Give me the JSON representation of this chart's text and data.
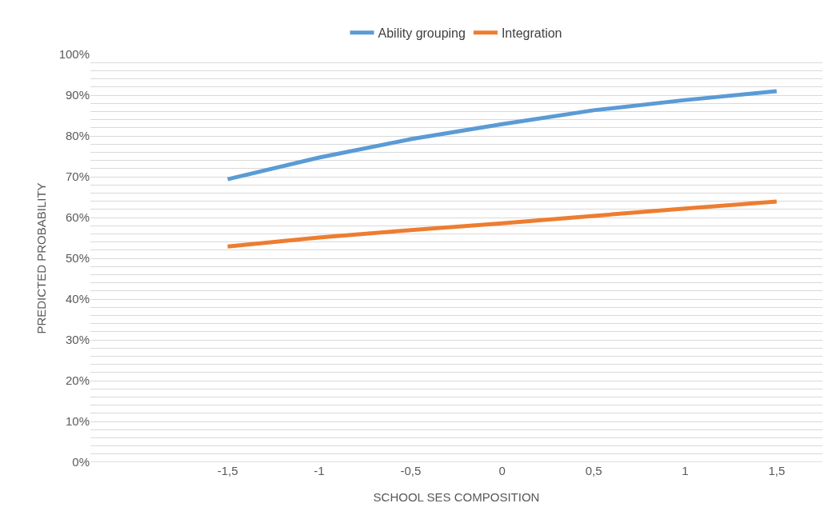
{
  "chart_data": {
    "type": "line",
    "xlabel": "SCHOOL SES COMPOSITION",
    "ylabel": "PREDICTED PROBABILITY",
    "categories": [
      null,
      "-1,5",
      "-1",
      "-0,5",
      "0",
      "0,5",
      "1",
      "1,5"
    ],
    "series": [
      {
        "name": "Ability grouping",
        "color": "#5b9bd5",
        "values": [
          null,
          69.4,
          74.7,
          79.2,
          82.9,
          86.3,
          88.8,
          91.0
        ]
      },
      {
        "name": "Integration",
        "color": "#ed7d31",
        "values": [
          null,
          52.9,
          55.1,
          56.9,
          58.6,
          60.4,
          62.2,
          63.9
        ]
      }
    ],
    "ylim": [
      0,
      100
    ],
    "yticks": [
      {
        "value": 0,
        "label": "0%"
      },
      {
        "value": 2,
        "label": null
      },
      {
        "value": 4,
        "label": null
      },
      {
        "value": 6,
        "label": null
      },
      {
        "value": 8,
        "label": null
      },
      {
        "value": 10,
        "label": "10%"
      },
      {
        "value": 12,
        "label": null
      },
      {
        "value": 14,
        "label": null
      },
      {
        "value": 16,
        "label": null
      },
      {
        "value": 18,
        "label": null
      },
      {
        "value": 20,
        "label": "20%"
      },
      {
        "value": 22,
        "label": null
      },
      {
        "value": 24,
        "label": null
      },
      {
        "value": 26,
        "label": null
      },
      {
        "value": 28,
        "label": null
      },
      {
        "value": 30,
        "label": "30%"
      },
      {
        "value": 32,
        "label": null
      },
      {
        "value": 34,
        "label": null
      },
      {
        "value": 36,
        "label": null
      },
      {
        "value": 38,
        "label": null
      },
      {
        "value": 40,
        "label": "40%"
      },
      {
        "value": 42,
        "label": null
      },
      {
        "value": 44,
        "label": null
      },
      {
        "value": 46,
        "label": null
      },
      {
        "value": 48,
        "label": null
      },
      {
        "value": 50,
        "label": "50%"
      },
      {
        "value": 52,
        "label": null
      },
      {
        "value": 54,
        "label": null
      },
      {
        "value": 56,
        "label": null
      },
      {
        "value": 58,
        "label": null
      },
      {
        "value": 60,
        "label": "60%"
      },
      {
        "value": 62,
        "label": null
      },
      {
        "value": 64,
        "label": null
      },
      {
        "value": 66,
        "label": null
      },
      {
        "value": 68,
        "label": null
      },
      {
        "value": 70,
        "label": "70%"
      },
      {
        "value": 72,
        "label": null
      },
      {
        "value": 74,
        "label": null
      },
      {
        "value": 76,
        "label": null
      },
      {
        "value": 78,
        "label": null
      },
      {
        "value": 80,
        "label": "80%"
      },
      {
        "value": 82,
        "label": null
      },
      {
        "value": 84,
        "label": null
      },
      {
        "value": 86,
        "label": null
      },
      {
        "value": 88,
        "label": null
      },
      {
        "value": 90,
        "label": "90%"
      },
      {
        "value": 92,
        "label": null
      },
      {
        "value": 94,
        "label": null
      },
      {
        "value": 96,
        "label": null
      },
      {
        "value": 98,
        "label": null
      },
      {
        "value": 100,
        "label": "100%"
      }
    ],
    "grid": "y",
    "legend": "top",
    "marker": "none",
    "line_style": "solid"
  }
}
